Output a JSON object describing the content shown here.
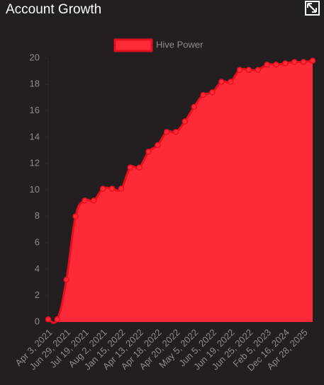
{
  "chart_data": {
    "type": "area",
    "title": "Account Growth",
    "categories": [
      "Apr 3, 2021",
      null,
      "Jun 29, 2021",
      null,
      "Jul 19, 2021",
      null,
      "Aug 2, 2021",
      null,
      "Jan 15, 2022",
      null,
      "Apr 13, 2022",
      null,
      "Apr 18, 2022",
      null,
      "Apr 20, 2022",
      null,
      "May 5, 2022",
      null,
      "Jun 5, 2022",
      null,
      "Jun 19, 2022",
      null,
      "Jun 25, 2022",
      null,
      "Feb 5, 2023",
      null,
      "Dec 16, 2024",
      null,
      "Apr 28, 2025",
      null
    ],
    "series": [
      {
        "name": "Hive Power",
        "color": "#ff2a38",
        "values": [
          0.2,
          0.2,
          3.2,
          8.0,
          9.2,
          9.2,
          10.1,
          10.1,
          10.1,
          11.7,
          11.7,
          12.9,
          13.4,
          14.4,
          14.4,
          15.2,
          16.3,
          17.2,
          17.4,
          18.2,
          18.2,
          19.1,
          19.1,
          19.1,
          19.5,
          19.5,
          19.6,
          19.7,
          19.7,
          19.8
        ]
      }
    ],
    "ylim": [
      0,
      20
    ],
    "yticks": [
      0,
      2,
      4,
      6,
      8,
      10,
      12,
      14,
      16,
      18,
      20
    ],
    "grid": false,
    "legend": "top"
  }
}
